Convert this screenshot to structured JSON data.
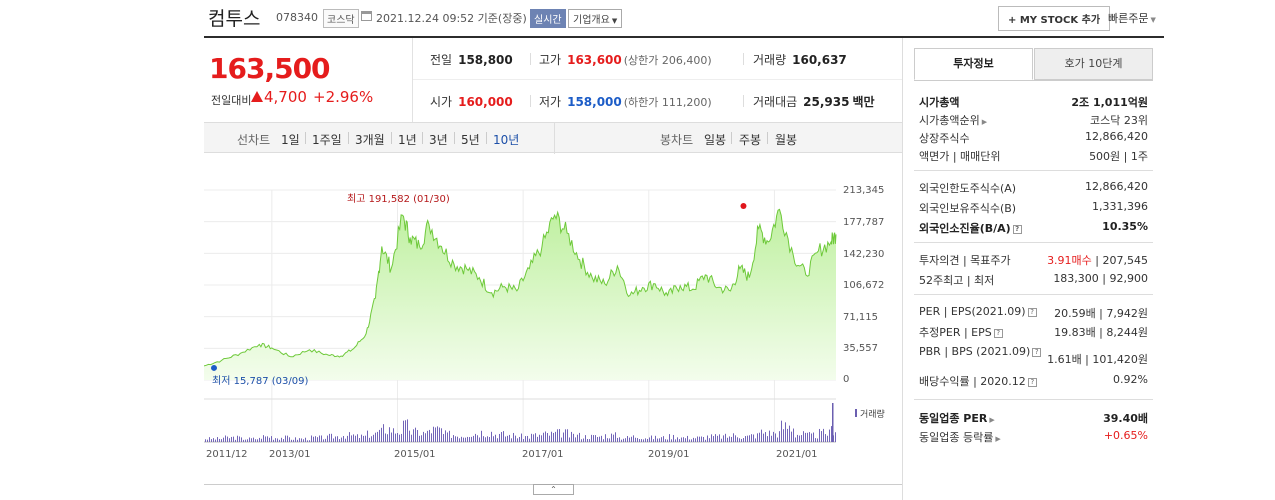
{
  "header": {
    "name": "컴투스",
    "code": "078340",
    "market": "코스닥",
    "date": "2021.12.24 09:52 기준(장중)",
    "realtime": "실시간",
    "corp_overview": "기업개요",
    "my_stock": "+ MY STOCK 추가",
    "quick_order": "빠른주문"
  },
  "price": {
    "current": "163,500",
    "diff_label": "전일대비",
    "diff": "4,700",
    "rate": "+2.96%"
  },
  "quotes": {
    "prev_label": "전일",
    "prev": "158,800",
    "high_label": "고가",
    "high": "163,600",
    "upper_limit": "(상한가 206,400)",
    "volume_label": "거래량",
    "volume": "160,637",
    "open_label": "시가",
    "open": "160,000",
    "low_label": "저가",
    "low": "158,000",
    "lower_limit": "(하한가 111,200)",
    "amount_label": "거래대금",
    "amount": "25,935",
    "amount_unit": "백만"
  },
  "period_bar": {
    "line_label": "선차트",
    "line_items": [
      "1일",
      "1주일",
      "3개월",
      "1년",
      "3년",
      "5년",
      "10년"
    ],
    "selected": "10년",
    "candle_label": "봉차트",
    "candle_items": [
      "일봉",
      "주봉",
      "월봉"
    ]
  },
  "chart_data": {
    "type": "area",
    "x_ticks": [
      "2011/12",
      "2013/01",
      "2015/01",
      "2017/01",
      "2019/01",
      "2021/01"
    ],
    "y_ticks": [
      "213,345",
      "177,787",
      "142,230",
      "106,672",
      "71,115",
      "35,557",
      "0"
    ],
    "ylim": [
      0,
      213345
    ],
    "high_label": "최고 191,582 (01/30)",
    "low_label": "최저 15,787 (03/09)",
    "volume_label": "거래량",
    "x": [
      2011.92,
      2012.2,
      2012.5,
      2012.8,
      2013.0,
      2013.3,
      2013.6,
      2013.9,
      2014.1,
      2014.3,
      2014.5,
      2014.65,
      2014.75,
      2014.9,
      2015.08,
      2015.2,
      2015.35,
      2015.5,
      2015.7,
      2015.9,
      2016.1,
      2016.3,
      2016.5,
      2016.7,
      2016.9,
      2017.1,
      2017.3,
      2017.5,
      2017.7,
      2017.9,
      2018.1,
      2018.3,
      2018.5,
      2018.7,
      2018.9,
      2019.1,
      2019.3,
      2019.5,
      2019.7,
      2019.9,
      2020.1,
      2020.3,
      2020.45,
      2020.6,
      2020.75,
      2020.9,
      2021.08,
      2021.3,
      2021.5,
      2021.7,
      2021.9,
      2021.98
    ],
    "values": [
      15787,
      22000,
      30000,
      40000,
      36000,
      26000,
      34000,
      28000,
      27000,
      35000,
      52000,
      92000,
      150000,
      125000,
      185000,
      160000,
      150000,
      175000,
      150000,
      130000,
      125000,
      115000,
      98000,
      105000,
      100000,
      125000,
      150000,
      185000,
      165000,
      135000,
      115000,
      108000,
      128000,
      95000,
      104000,
      108000,
      95000,
      106000,
      102000,
      118000,
      104000,
      100000,
      125000,
      115000,
      170000,
      155000,
      191582,
      140000,
      118000,
      145000,
      155000,
      163500
    ],
    "volume": [
      3,
      4,
      3,
      5,
      4,
      3,
      4,
      5,
      6,
      5,
      7,
      9,
      12,
      10,
      14,
      9,
      8,
      11,
      7,
      6,
      8,
      9,
      7,
      6,
      5,
      6,
      7,
      8,
      6,
      5,
      5,
      6,
      4,
      5,
      4,
      4,
      5,
      4,
      4,
      5,
      5,
      6,
      5,
      6,
      9,
      8,
      14,
      7,
      6,
      8,
      12,
      30
    ]
  },
  "right": {
    "tab_invest": "투자정보",
    "tab_orderbook": "호가 10단계",
    "rows": [
      {
        "k": "시가총액",
        "v": "2조 1,011억원",
        "bold": true
      },
      {
        "k": "시가총액순위",
        "v": "코스닥 23위"
      },
      {
        "k": "상장주식수",
        "v": "12,866,420"
      },
      {
        "k": "액면가 | 매매단위",
        "v": "500원 | 1주"
      },
      {
        "k": "외국인한도주식수(A)",
        "v": "12,866,420"
      },
      {
        "k": "외국인보유주식수(B)",
        "v": "1,331,396"
      },
      {
        "k": "외국인소진율(B/A)",
        "v": "10.35%",
        "bold": true
      },
      {
        "k": "투자의견 | 목표주가",
        "v1": "3.91매수",
        "v2": "207,545"
      },
      {
        "k": "52주최고 | 최저",
        "v": "183,300 | 92,900"
      },
      {
        "k": "PER | EPS(2021.09)",
        "v": "20.59배 | 7,942원"
      },
      {
        "k": "추정PER | EPS",
        "v": "19.83배 | 8,244원"
      },
      {
        "k": "PBR | BPS (2021.09)",
        "v": "1.61배 | 101,420원"
      },
      {
        "k": "배당수익률 | 2020.12",
        "v": "0.92%"
      },
      {
        "k": "동일업종 PER",
        "v": "39.40배",
        "bold": true
      },
      {
        "k": "동일업종 등락률",
        "v": "+0.65%"
      }
    ]
  }
}
